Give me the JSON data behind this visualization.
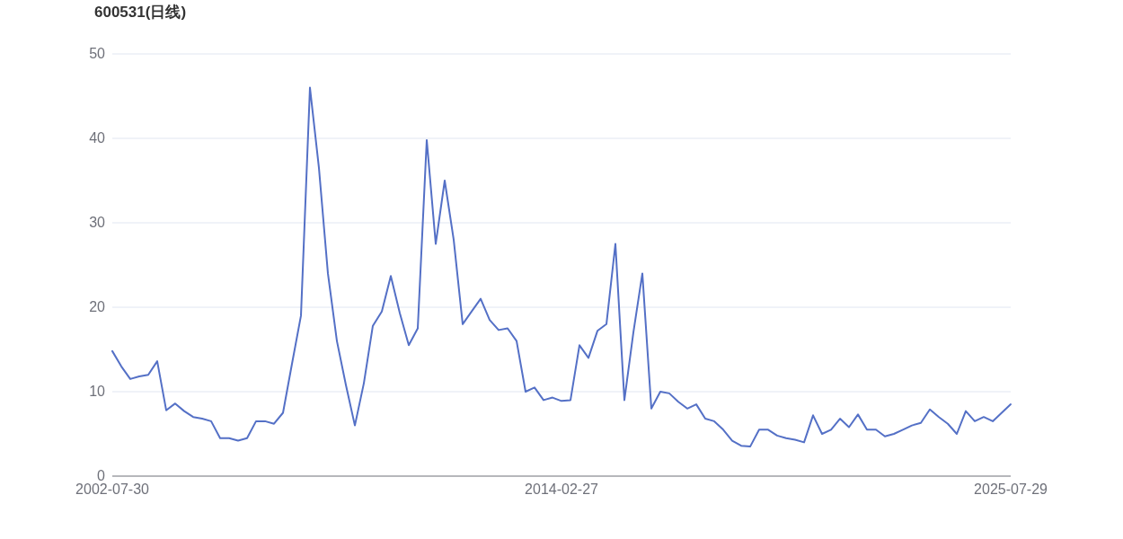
{
  "chart_data": {
    "type": "line",
    "title": "600531(日线)",
    "categories": [
      "2002-07-30",
      null,
      null,
      null,
      null,
      null,
      null,
      null,
      null,
      null,
      null,
      null,
      null,
      null,
      null,
      null,
      null,
      null,
      null,
      null,
      null,
      null,
      null,
      null,
      null,
      null,
      null,
      null,
      null,
      null,
      null,
      null,
      null,
      null,
      null,
      null,
      null,
      null,
      null,
      null,
      null,
      null,
      null,
      null,
      null,
      null,
      null,
      null,
      null,
      null,
      "2014-02-27",
      null,
      null,
      null,
      null,
      null,
      null,
      null,
      null,
      null,
      null,
      null,
      null,
      null,
      null,
      null,
      null,
      null,
      null,
      null,
      null,
      null,
      null,
      null,
      null,
      null,
      null,
      null,
      null,
      null,
      null,
      null,
      null,
      null,
      null,
      null,
      null,
      null,
      null,
      null,
      null,
      null,
      null,
      null,
      null,
      null,
      null,
      null,
      null,
      null,
      "2025-07-29"
    ],
    "values": [
      14.8,
      13.0,
      11.5,
      11.8,
      12.0,
      13.6,
      7.8,
      8.6,
      7.7,
      7.0,
      6.8,
      6.5,
      4.5,
      4.5,
      4.2,
      4.5,
      6.5,
      6.5,
      6.2,
      7.5,
      13.3,
      19.0,
      46.0,
      36.5,
      24.0,
      16.0,
      10.8,
      6.0,
      11.0,
      17.8,
      19.5,
      23.7,
      19.3,
      15.5,
      17.5,
      39.8,
      27.5,
      35.0,
      28.0,
      18.0,
      19.5,
      21.0,
      18.5,
      17.3,
      17.5,
      16.0,
      10.0,
      10.5,
      9.0,
      9.3,
      8.9,
      9.0,
      15.5,
      14.0,
      17.2,
      18.0,
      27.5,
      9.0,
      17.0,
      24.0,
      8.0,
      10.0,
      9.8,
      8.8,
      8.0,
      8.5,
      6.8,
      6.5,
      5.5,
      4.2,
      3.6,
      3.5,
      5.5,
      5.5,
      4.8,
      4.5,
      4.3,
      4.0,
      7.2,
      5.0,
      5.5,
      6.8,
      5.8,
      7.3,
      5.5,
      5.5,
      4.7,
      5.0,
      5.5,
      6.0,
      6.3,
      7.9,
      7.0,
      6.2,
      5.0,
      7.7,
      6.5,
      7.0,
      6.5,
      7.5,
      8.5
    ],
    "color": "#5470c6",
    "ylim": [
      0,
      50
    ],
    "yticks": [
      0,
      10,
      20,
      30,
      40,
      50
    ],
    "grid": "y"
  }
}
